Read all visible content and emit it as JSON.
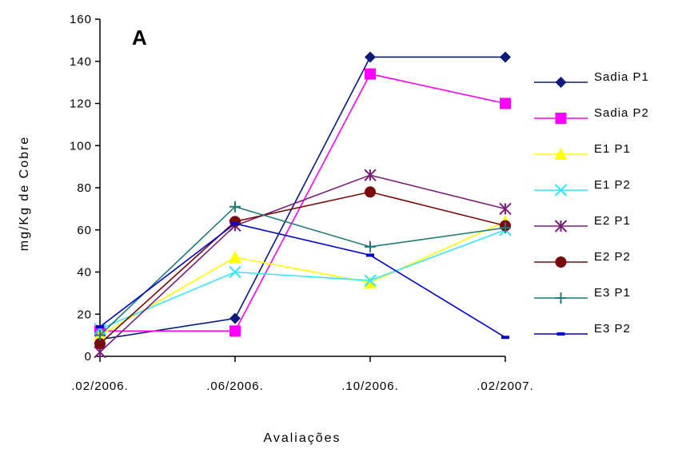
{
  "chart_data": {
    "type": "line",
    "panel_label": "A",
    "xlabel": "Avaliações",
    "ylabel": "mg/Kg de Cobre",
    "categories": [
      ".02/2006.",
      ".06/2006.",
      ".10/2006.",
      ".02/2007."
    ],
    "ylim": [
      0,
      160
    ],
    "yticks": [
      0,
      20,
      40,
      60,
      80,
      100,
      120,
      140,
      160
    ],
    "legend_position": "right",
    "series": [
      {
        "name": "Sadia P1",
        "color": "#0a1a7a",
        "marker": "diamond",
        "values": [
          8,
          18,
          142,
          142
        ]
      },
      {
        "name": "Sadia P2",
        "color": "#ff00ff",
        "marker": "square",
        "values": [
          12,
          12,
          134,
          120
        ]
      },
      {
        "name": "E1 P1",
        "color": "#ffff00",
        "marker": "triangle",
        "values": [
          10,
          47,
          35,
          64
        ]
      },
      {
        "name": "E1 P2",
        "color": "#33e6ff",
        "marker": "x",
        "values": [
          13,
          40,
          36,
          60
        ]
      },
      {
        "name": "E2 P1",
        "color": "#7a1f7a",
        "marker": "star",
        "values": [
          2,
          62,
          86,
          70
        ]
      },
      {
        "name": "E2 P2",
        "color": "#7a0a0a",
        "marker": "circle",
        "values": [
          6,
          64,
          78,
          62
        ]
      },
      {
        "name": "E3 P1",
        "color": "#1f7a7a",
        "marker": "plus",
        "values": [
          10,
          71,
          52,
          61
        ]
      },
      {
        "name": "E3 P2",
        "color": "#0000cc",
        "marker": "dash",
        "values": [
          14,
          63,
          48,
          9
        ]
      }
    ]
  }
}
